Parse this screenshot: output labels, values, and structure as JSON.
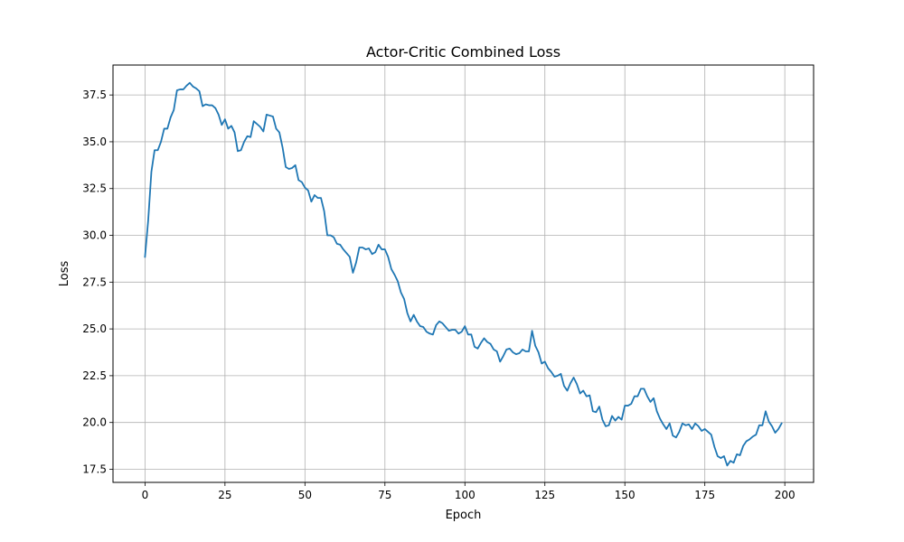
{
  "chart_data": {
    "type": "line",
    "title": "Actor-Critic Combined Loss",
    "xlabel": "Epoch",
    "ylabel": "Loss",
    "xlim": [
      -10,
      209
    ],
    "ylim": [
      16.8,
      39.1
    ],
    "xticks": [
      0,
      25,
      50,
      75,
      100,
      125,
      150,
      175,
      200
    ],
    "yticks": [
      17.5,
      20.0,
      22.5,
      25.0,
      27.5,
      30.0,
      32.5,
      35.0,
      37.5
    ],
    "xtick_labels": [
      "0",
      "25",
      "50",
      "75",
      "100",
      "125",
      "150",
      "175",
      "200"
    ],
    "ytick_labels": [
      "17.5",
      "20.0",
      "22.5",
      "25.0",
      "27.5",
      "30.0",
      "32.5",
      "35.0",
      "37.5"
    ],
    "grid": true,
    "series": [
      {
        "color": "#1f77b4",
        "x": [
          0,
          1,
          2,
          3,
          4,
          5,
          6,
          7,
          8,
          9,
          10,
          11,
          12,
          13,
          14,
          15,
          16,
          17,
          18,
          19,
          20,
          21,
          22,
          23,
          24,
          25,
          26,
          27,
          28,
          29,
          30,
          31,
          32,
          33,
          34,
          35,
          36,
          37,
          38,
          39,
          40,
          41,
          42,
          43,
          44,
          45,
          46,
          47,
          48,
          49,
          50,
          51,
          52,
          53,
          54,
          55,
          56,
          57,
          58,
          59,
          60,
          61,
          62,
          63,
          64,
          65,
          66,
          67,
          68,
          69,
          70,
          71,
          72,
          73,
          74,
          75,
          76,
          77,
          78,
          79,
          80,
          81,
          82,
          83,
          84,
          85,
          86,
          87,
          88,
          89,
          90,
          91,
          92,
          93,
          94,
          95,
          96,
          97,
          98,
          99,
          100,
          101,
          102,
          103,
          104,
          105,
          106,
          107,
          108,
          109,
          110,
          111,
          112,
          113,
          114,
          115,
          116,
          117,
          118,
          119,
          120,
          121,
          122,
          123,
          124,
          125,
          126,
          127,
          128,
          129,
          130,
          131,
          132,
          133,
          134,
          135,
          136,
          137,
          138,
          139,
          140,
          141,
          142,
          143,
          144,
          145,
          146,
          147,
          148,
          149,
          150,
          151,
          152,
          153,
          154,
          155,
          156,
          157,
          158,
          159,
          160,
          161,
          162,
          163,
          164,
          165,
          166,
          167,
          168,
          169,
          170,
          171,
          172,
          173,
          174,
          175,
          176,
          177,
          178,
          179,
          180,
          181,
          182,
          183,
          184,
          185,
          186,
          187,
          188,
          189,
          190,
          191,
          192,
          193,
          194,
          195,
          196,
          197,
          198,
          199
        ],
        "y": [
          28.85,
          30.8,
          33.4,
          34.55,
          34.55,
          35.0,
          35.7,
          35.7,
          36.3,
          36.7,
          37.75,
          37.8,
          37.8,
          38.0,
          38.15,
          37.95,
          37.85,
          37.7,
          36.9,
          37.0,
          36.95,
          36.95,
          36.8,
          36.45,
          35.9,
          36.2,
          35.7,
          35.85,
          35.5,
          34.5,
          34.55,
          35.0,
          35.3,
          35.25,
          36.1,
          35.95,
          35.8,
          35.55,
          36.45,
          36.4,
          36.35,
          35.7,
          35.5,
          34.7,
          33.65,
          33.55,
          33.6,
          33.75,
          32.95,
          32.85,
          32.55,
          32.4,
          31.8,
          32.15,
          32.0,
          32.0,
          31.3,
          30.0,
          30.0,
          29.9,
          29.55,
          29.5,
          29.25,
          29.05,
          28.85,
          28.0,
          28.55,
          29.35,
          29.35,
          29.25,
          29.3,
          29.0,
          29.1,
          29.5,
          29.25,
          29.25,
          28.85,
          28.2,
          27.9,
          27.55,
          26.95,
          26.6,
          25.85,
          25.4,
          25.75,
          25.4,
          25.15,
          25.1,
          24.85,
          24.75,
          24.7,
          25.2,
          25.4,
          25.3,
          25.1,
          24.9,
          24.95,
          24.95,
          24.75,
          24.85,
          25.15,
          24.7,
          24.7,
          24.05,
          23.95,
          24.25,
          24.5,
          24.3,
          24.2,
          23.9,
          23.8,
          23.25,
          23.55,
          23.9,
          23.95,
          23.75,
          23.65,
          23.7,
          23.9,
          23.8,
          23.8,
          24.9,
          24.1,
          23.75,
          23.15,
          23.25,
          22.9,
          22.7,
          22.45,
          22.5,
          22.6,
          21.95,
          21.7,
          22.1,
          22.4,
          22.05,
          21.55,
          21.7,
          21.4,
          21.45,
          20.6,
          20.55,
          20.85,
          20.15,
          19.8,
          19.85,
          20.35,
          20.1,
          20.3,
          20.15,
          20.9,
          20.9,
          21.0,
          21.4,
          21.4,
          21.8,
          21.8,
          21.4,
          21.1,
          21.3,
          20.6,
          20.2,
          19.9,
          19.65,
          19.95,
          19.3,
          19.2,
          19.5,
          19.95,
          19.85,
          19.9,
          19.65,
          19.95,
          19.8,
          19.55,
          19.65,
          19.5,
          19.35,
          18.7,
          18.2,
          18.1,
          18.2,
          17.7,
          17.95,
          17.85,
          18.3,
          18.25,
          18.75,
          19.0,
          19.1,
          19.25,
          19.35,
          19.85,
          19.85,
          20.6,
          20.05,
          19.8,
          19.45,
          19.65,
          19.95
        ]
      }
    ]
  }
}
